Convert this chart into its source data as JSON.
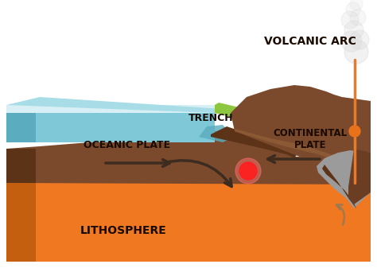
{
  "bg_color": "#ffffff",
  "orange_color": "#F07820",
  "orange_dark": "#C55F10",
  "orange_side": "#D96A15",
  "brown_main": "#7B4A2D",
  "brown_dark": "#5C3317",
  "brown_medium": "#6B3D22",
  "brown_light": "#8B5A35",
  "ocean_top": "#A8DDE8",
  "ocean_body": "#7EC8D8",
  "ocean_dark": "#5AACBE",
  "ocean_white": "#D8F0F5",
  "green_land": "#8DC63F",
  "green_dark": "#6AAA20",
  "gray_volcano": "#9B9B9B",
  "gray_light": "#C8C8C8",
  "smoke_color": "#D8D8D8",
  "arrow_dark": "#3D2B1F",
  "arrow_mantle": "#A07850",
  "red_hot": "#FF2020",
  "red_glow": "#FF7070",
  "orange_magma_dot": "#E8721A",
  "orange_line": "#F07820",
  "labels": {
    "volcanic_arc": "VOLCANIC ARC",
    "trench": "TRENCH",
    "oceanic_plate": "OCEANIC PLATE",
    "continental_plate": "CONTINENTAL\nPLATE",
    "lithosphere": "LITHOSPHERE"
  },
  "lfs_main": 9,
  "lfs_big": 10,
  "label_color": "#1A0A00"
}
